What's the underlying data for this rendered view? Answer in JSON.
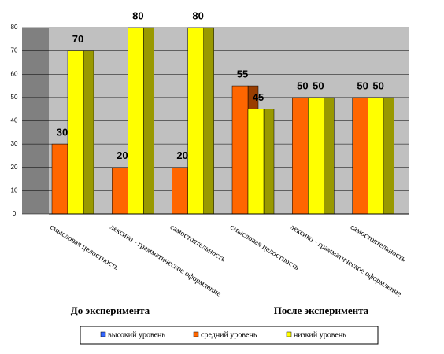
{
  "chart_data": {
    "type": "bar",
    "categories": [
      "смысловая целостность",
      "лексико - грамматическое оформление",
      "самостоятельность",
      "смысловая целостность",
      "лексико - грамматическое оформление",
      "самостоятельность"
    ],
    "series": [
      {
        "name": "высокий уровень",
        "color": "#3366ff",
        "values": [
          0,
          0,
          0,
          0,
          0,
          0
        ]
      },
      {
        "name": "средний уровень",
        "color": "#ff6600",
        "values": [
          30,
          20,
          20,
          55,
          50,
          50
        ]
      },
      {
        "name": "низкий уровень",
        "color": "#ffff00",
        "values": [
          70,
          80,
          80,
          45,
          50,
          50
        ]
      }
    ],
    "ylim": [
      0,
      80
    ],
    "yticks": [
      0,
      10,
      20,
      30,
      40,
      50,
      60,
      70,
      80
    ],
    "grid": true,
    "annotations": [
      "До эксперимента",
      "После эксперимента"
    ]
  }
}
